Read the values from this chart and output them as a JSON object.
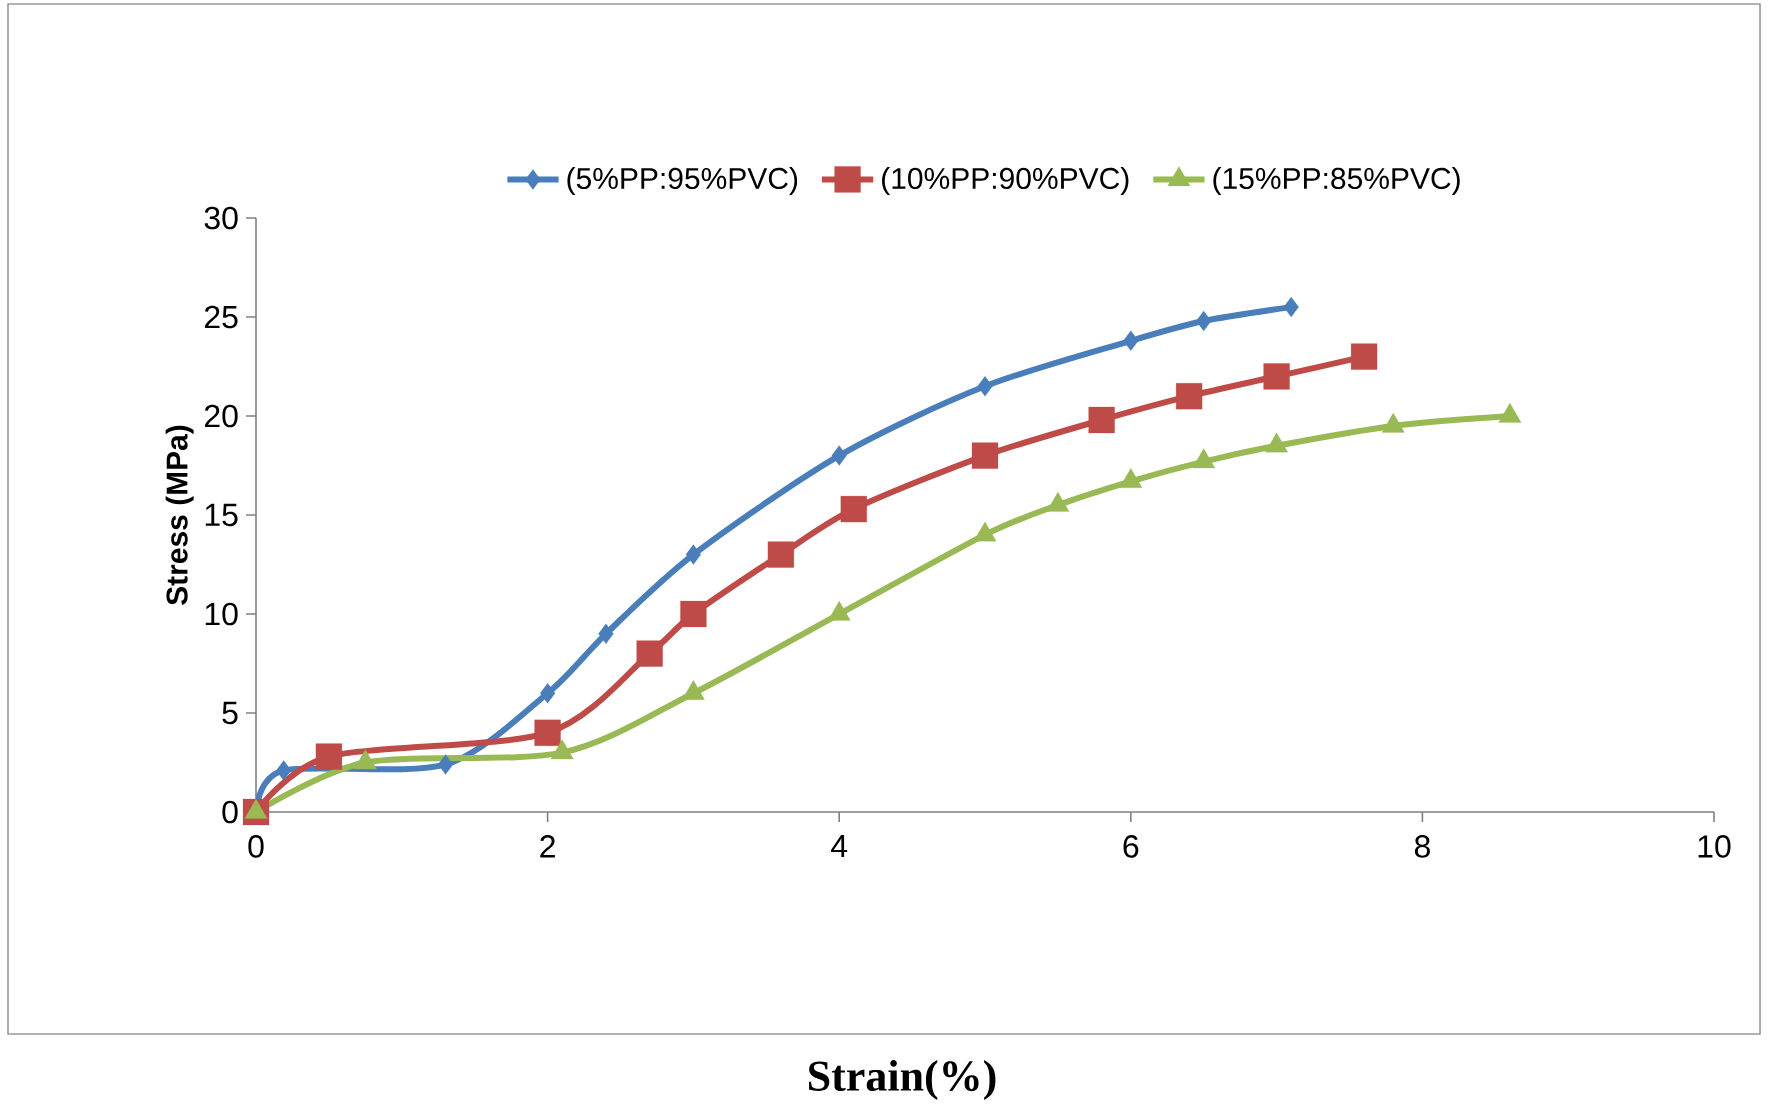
{
  "chart_data": {
    "type": "line",
    "xlabel": "Strain(%)",
    "ylabel": "Stress (MPa)",
    "xlim": [
      0,
      10
    ],
    "ylim": [
      0,
      30
    ],
    "xticks": [
      0,
      2,
      4,
      6,
      8,
      10
    ],
    "yticks": [
      0,
      5,
      10,
      15,
      20,
      25,
      30
    ],
    "grid": false,
    "legend": "top",
    "line_style": "solid",
    "series": [
      {
        "name": "(5%PP:95%PVC)",
        "color": "#4a7ebb",
        "marker": "diamond",
        "x": [
          0,
          0.19,
          1.3,
          2,
          2.4,
          3,
          4,
          5,
          6,
          6.5,
          7.1
        ],
        "values": [
          0,
          2.1,
          2.4,
          6,
          9,
          13,
          18,
          21.5,
          23.8,
          24.8,
          25.5
        ]
      },
      {
        "name": "(10%PP:90%PVC)",
        "color": "#be4b48",
        "marker": "square",
        "x": [
          0,
          0.5,
          2,
          2.7,
          3,
          3.6,
          4.1,
          5,
          5.8,
          6.4,
          7,
          7.6
        ],
        "values": [
          0,
          2.8,
          4,
          8,
          10,
          13,
          15.3,
          18,
          19.8,
          21,
          22,
          23
        ]
      },
      {
        "name": "(15%PP:85%PVC)",
        "color": "#98b954",
        "marker": "triangle",
        "x": [
          0,
          0.75,
          2.1,
          3,
          4,
          5,
          5.5,
          6,
          6.5,
          7,
          7.8,
          8.6
        ],
        "values": [
          0,
          2.5,
          3,
          6,
          10,
          14,
          15.5,
          16.7,
          17.7,
          18.5,
          19.5,
          20
        ]
      }
    ]
  }
}
